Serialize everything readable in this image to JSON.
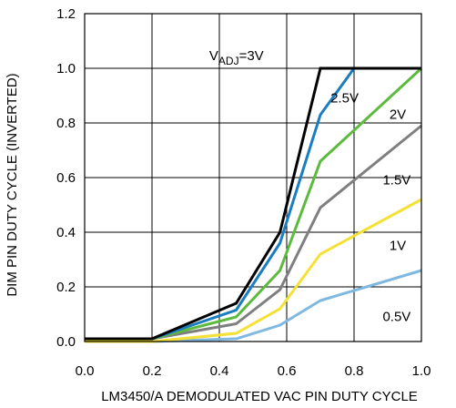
{
  "chart_data": {
    "type": "line",
    "title": "",
    "xlabel": "LM3450/A DEMODULATED VAC PIN DUTY CYCLE",
    "ylabel": "DIM PIN DUTY CYCLE (INVERTED)",
    "xlim": [
      0.0,
      1.0
    ],
    "ylim": [
      0.0,
      1.2
    ],
    "x_ticks": [
      "0.0",
      "0.2",
      "0.4",
      "0.6",
      "0.8",
      "1.0"
    ],
    "y_ticks": [
      "0.0",
      "0.2",
      "0.4",
      "0.6",
      "0.8",
      "1.0",
      "1.2"
    ],
    "grid": true,
    "series": [
      {
        "name_main": "V",
        "name_sub": "ADJ",
        "name_rest": "=3V",
        "color": "#000000",
        "points": [
          [
            0.0,
            0.01
          ],
          [
            0.2,
            0.01
          ],
          [
            0.45,
            0.14
          ],
          [
            0.58,
            0.4
          ],
          [
            0.7,
            1.0
          ],
          [
            1.0,
            1.0
          ]
        ]
      },
      {
        "name": "2.5V",
        "color": "#1a7dc0",
        "points": [
          [
            0.0,
            0.01
          ],
          [
            0.2,
            0.01
          ],
          [
            0.45,
            0.115
          ],
          [
            0.58,
            0.36
          ],
          [
            0.7,
            0.83
          ],
          [
            0.8,
            1.0
          ],
          [
            1.0,
            1.0
          ]
        ]
      },
      {
        "name": "2V",
        "color": "#5cba3c",
        "points": [
          [
            0.0,
            0.01
          ],
          [
            0.2,
            0.01
          ],
          [
            0.45,
            0.09
          ],
          [
            0.58,
            0.26
          ],
          [
            0.7,
            0.66
          ],
          [
            1.0,
            1.0
          ]
        ]
      },
      {
        "name": "1.5V",
        "color": "#7f7f7f",
        "points": [
          [
            0.0,
            0.01
          ],
          [
            0.2,
            0.01
          ],
          [
            0.45,
            0.065
          ],
          [
            0.58,
            0.19
          ],
          [
            0.7,
            0.49
          ],
          [
            1.0,
            0.79
          ]
        ]
      },
      {
        "name": "1V",
        "color": "#f5e035",
        "points": [
          [
            0.0,
            0.0
          ],
          [
            0.2,
            0.0
          ],
          [
            0.45,
            0.03
          ],
          [
            0.58,
            0.12
          ],
          [
            0.7,
            0.32
          ],
          [
            1.0,
            0.52
          ]
        ]
      },
      {
        "name": "0.5V",
        "color": "#7fb8e0",
        "points": [
          [
            0.0,
            0.0
          ],
          [
            0.2,
            0.0
          ],
          [
            0.45,
            0.01
          ],
          [
            0.58,
            0.06
          ],
          [
            0.7,
            0.15
          ],
          [
            1.0,
            0.26
          ]
        ]
      }
    ]
  }
}
